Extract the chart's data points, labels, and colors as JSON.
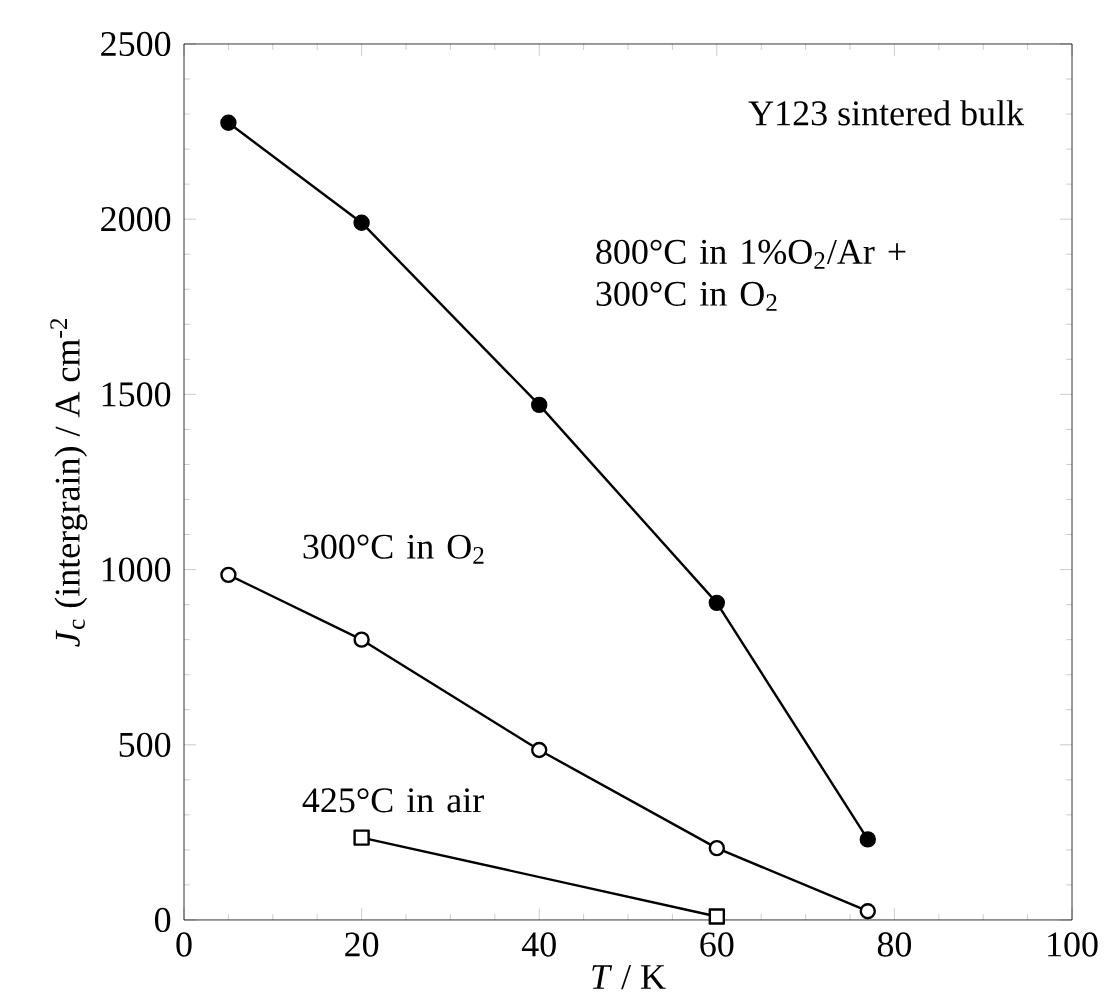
{
  "chart_data": {
    "type": "line",
    "xlabel": "*T* / K",
    "ylabel": "*J*$_{c}$ (intergrain) / A cm$^{-2}$",
    "annotations": [
      "Y123 sintered bulk"
    ],
    "xlim": [
      0,
      100
    ],
    "xticks": [
      0,
      20,
      40,
      60,
      80,
      100
    ],
    "ylim": [
      0,
      2500
    ],
    "yticks": [
      0,
      500,
      1000,
      1500,
      2000,
      2500
    ],
    "grid": false,
    "line_style": "solid",
    "series": [
      {
        "name": "800°C in 1%O$_{2}$/Ar + 300°C in O$_{2}$",
        "color": "#000000",
        "marker": "circle",
        "x": [
          5,
          20,
          40,
          60,
          77
        ],
        "values": [
          2275,
          1990,
          1470,
          905,
          230
        ]
      },
      {
        "name": "300°C in O$_{2}$",
        "color": "#000000",
        "marker": "circle",
        "x": [
          5,
          20,
          40,
          60,
          77
        ],
        "values": [
          985,
          800,
          485,
          205,
          25
        ]
      },
      {
        "name": "425°C in air",
        "color": "#000000",
        "marker": "square",
        "x": [
          20,
          60
        ],
        "values": [
          235,
          10
        ]
      }
    ]
  }
}
